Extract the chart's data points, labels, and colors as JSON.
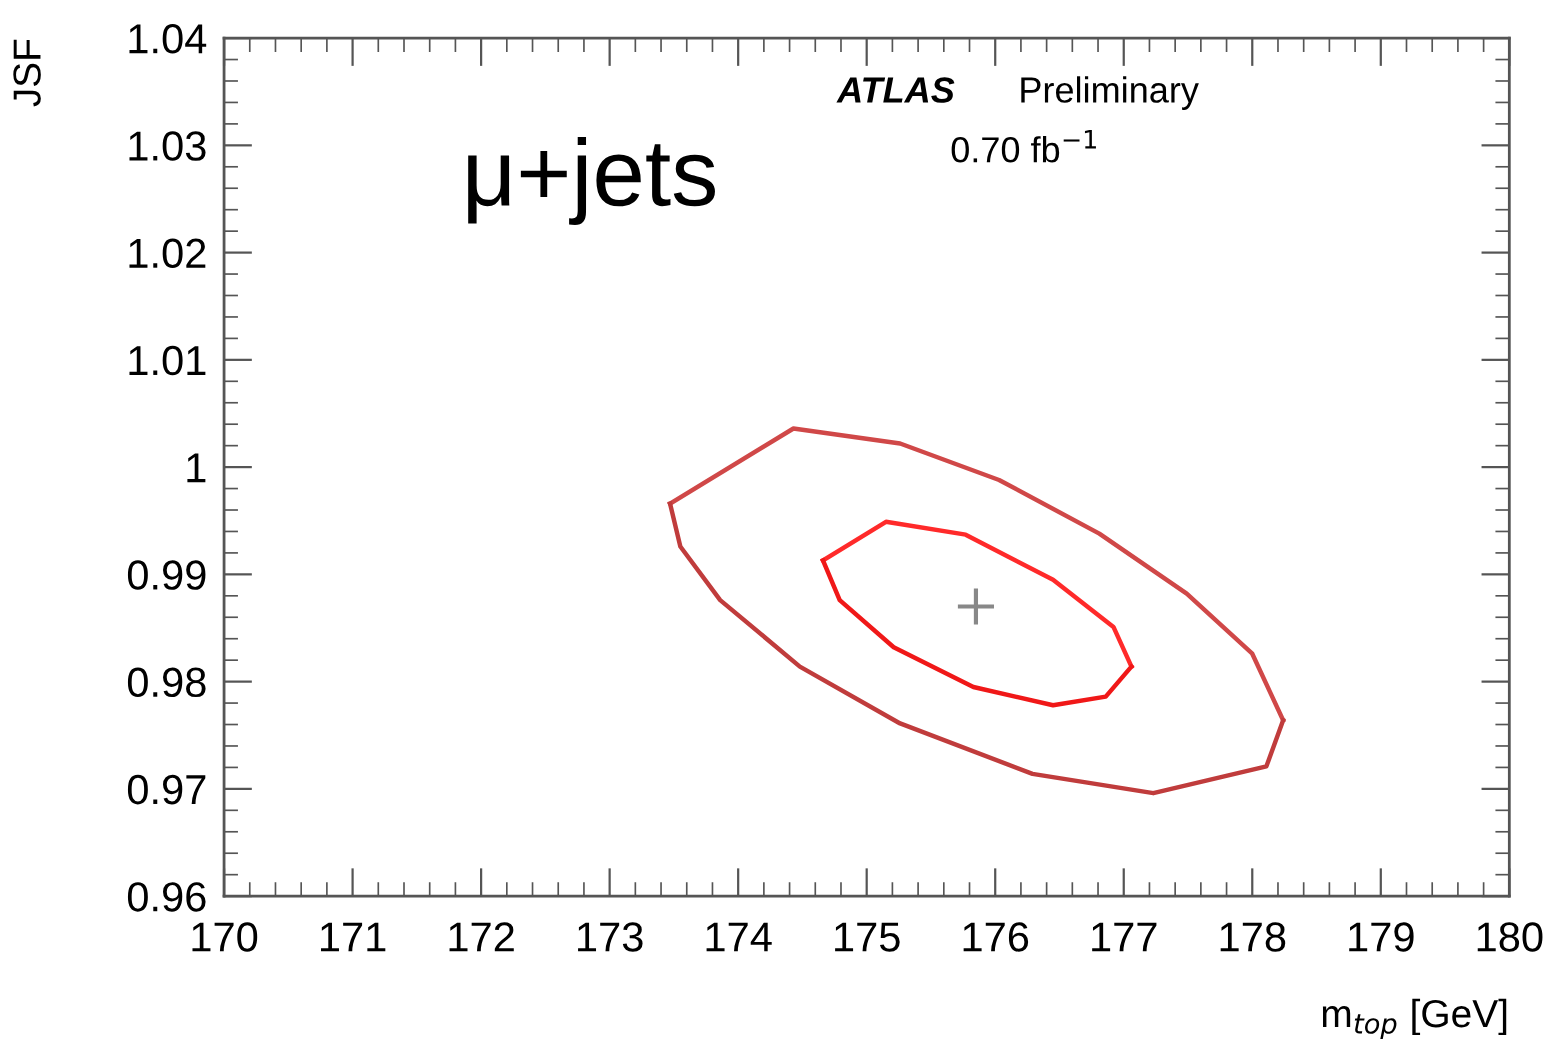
{
  "chart_data": {
    "type": "line",
    "xlabel": "m$_{top}$ [GeV]",
    "ylabel": "JSF",
    "annotations": [
      "μ+jets",
      "ATLAS",
      "Preliminary",
      "0.70 fb$^{−1}$"
    ],
    "xlim": [
      170,
      180
    ],
    "ylim": [
      0.96,
      1.04
    ],
    "xticks": [
      170,
      171,
      172,
      173,
      174,
      175,
      176,
      177,
      178,
      179,
      180
    ],
    "yticks": [
      0.96,
      0.97,
      0.98,
      0.99,
      1,
      1.01,
      1.02,
      1.03,
      1.04
    ],
    "grid": false,
    "legend": false,
    "series": [
      {
        "color": "#d04848",
        "x": [
          173.47,
          174.43,
          175.26,
          176.03,
          176.81,
          177.49,
          178.0,
          178.24
        ],
        "values": [
          0.9966,
          1.0036,
          1.0022,
          0.9988,
          0.9938,
          0.9882,
          0.9826,
          0.9764
        ]
      },
      {
        "color": "#c03c3c",
        "x": [
          173.47,
          173.55,
          173.86,
          174.48,
          175.26,
          176.29,
          177.23,
          178.11,
          178.24
        ],
        "values": [
          0.9966,
          0.9926,
          0.9876,
          0.9814,
          0.9761,
          0.9714,
          0.9696,
          0.9721,
          0.9764
        ]
      },
      {
        "color": "#ff2a2a",
        "x": [
          174.66,
          175.15,
          175.77,
          176.45,
          176.92,
          177.06
        ],
        "values": [
          0.9913,
          0.9949,
          0.9937,
          0.9895,
          0.9851,
          0.9814
        ]
      },
      {
        "color": "#f01818",
        "x": [
          174.66,
          174.79,
          175.21,
          175.83,
          176.45,
          176.86,
          177.06
        ],
        "values": [
          0.9913,
          0.9876,
          0.9832,
          0.9795,
          0.9778,
          0.9786,
          0.9814
        ]
      },
      {
        "type": "scatter",
        "marker": "cross",
        "color": "#888888",
        "x": [
          175.85
        ],
        "values": [
          0.987
        ]
      }
    ]
  }
}
